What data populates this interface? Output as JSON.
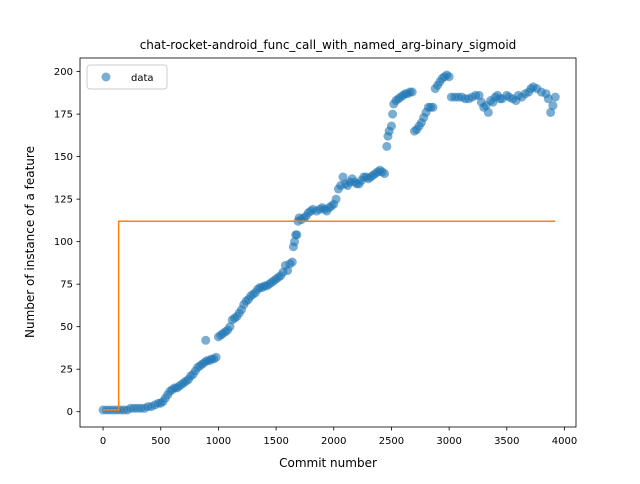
{
  "chart_data": {
    "type": "scatter",
    "title": "chat-rocket-android_func_call_with_named_arg-binary_sigmoid",
    "xlabel": "Commit number",
    "ylabel": "Number of instance of a feature",
    "xlim": [
      -200,
      4100
    ],
    "ylim": [
      -9,
      208
    ],
    "xticks": [
      0,
      500,
      1000,
      1500,
      2000,
      2500,
      3000,
      3500,
      4000
    ],
    "yticks": [
      0,
      25,
      50,
      75,
      100,
      125,
      150,
      175,
      200
    ],
    "grid": false,
    "legend": {
      "placement": "top-left",
      "entries": [
        "data"
      ]
    },
    "series": [
      {
        "name": "data",
        "kind": "scatter",
        "color": "#1f77b4",
        "points": [
          [
            0,
            1
          ],
          [
            30,
            1
          ],
          [
            60,
            1
          ],
          [
            90,
            1
          ],
          [
            120,
            1
          ],
          [
            150,
            1
          ],
          [
            180,
            1
          ],
          [
            210,
            1
          ],
          [
            240,
            2
          ],
          [
            270,
            2
          ],
          [
            300,
            2
          ],
          [
            330,
            2
          ],
          [
            360,
            2
          ],
          [
            390,
            3
          ],
          [
            420,
            3
          ],
          [
            450,
            4
          ],
          [
            480,
            5
          ],
          [
            500,
            5
          ],
          [
            520,
            6
          ],
          [
            540,
            8
          ],
          [
            560,
            10
          ],
          [
            580,
            12
          ],
          [
            600,
            13
          ],
          [
            620,
            14
          ],
          [
            640,
            14
          ],
          [
            660,
            15
          ],
          [
            680,
            16
          ],
          [
            700,
            17
          ],
          [
            720,
            18
          ],
          [
            740,
            19
          ],
          [
            760,
            21
          ],
          [
            780,
            22
          ],
          [
            800,
            24
          ],
          [
            820,
            26
          ],
          [
            840,
            27
          ],
          [
            860,
            28
          ],
          [
            880,
            29
          ],
          [
            890,
            42
          ],
          [
            900,
            30
          ],
          [
            920,
            30
          ],
          [
            940,
            31
          ],
          [
            960,
            31
          ],
          [
            980,
            32
          ],
          [
            1000,
            44
          ],
          [
            1020,
            45
          ],
          [
            1040,
            46
          ],
          [
            1060,
            47
          ],
          [
            1080,
            48
          ],
          [
            1100,
            50
          ],
          [
            1120,
            54
          ],
          [
            1140,
            55
          ],
          [
            1160,
            56
          ],
          [
            1180,
            58
          ],
          [
            1200,
            60
          ],
          [
            1220,
            63
          ],
          [
            1240,
            65
          ],
          [
            1260,
            66
          ],
          [
            1280,
            68
          ],
          [
            1300,
            69
          ],
          [
            1320,
            70
          ],
          [
            1340,
            72
          ],
          [
            1360,
            73
          ],
          [
            1380,
            73
          ],
          [
            1400,
            74
          ],
          [
            1420,
            74
          ],
          [
            1440,
            75
          ],
          [
            1460,
            76
          ],
          [
            1480,
            77
          ],
          [
            1500,
            78
          ],
          [
            1520,
            79
          ],
          [
            1540,
            80
          ],
          [
            1560,
            82
          ],
          [
            1580,
            86
          ],
          [
            1600,
            83
          ],
          [
            1620,
            87
          ],
          [
            1640,
            88
          ],
          [
            1650,
            97
          ],
          [
            1660,
            100
          ],
          [
            1670,
            104
          ],
          [
            1680,
            104
          ],
          [
            1690,
            112
          ],
          [
            1700,
            114
          ],
          [
            1720,
            113
          ],
          [
            1740,
            114
          ],
          [
            1760,
            115
          ],
          [
            1780,
            117
          ],
          [
            1800,
            118
          ],
          [
            1820,
            119
          ],
          [
            1850,
            118
          ],
          [
            1880,
            119
          ],
          [
            1900,
            120
          ],
          [
            1920,
            119
          ],
          [
            1940,
            118
          ],
          [
            1960,
            120
          ],
          [
            1980,
            121
          ],
          [
            2000,
            122
          ],
          [
            2020,
            125
          ],
          [
            2040,
            131
          ],
          [
            2060,
            133
          ],
          [
            2080,
            138
          ],
          [
            2100,
            134
          ],
          [
            2120,
            133
          ],
          [
            2140,
            135
          ],
          [
            2160,
            137
          ],
          [
            2180,
            135
          ],
          [
            2200,
            134
          ],
          [
            2220,
            134
          ],
          [
            2240,
            136
          ],
          [
            2260,
            138
          ],
          [
            2280,
            138
          ],
          [
            2300,
            137
          ],
          [
            2320,
            138
          ],
          [
            2340,
            139
          ],
          [
            2360,
            140
          ],
          [
            2380,
            141
          ],
          [
            2400,
            142
          ],
          [
            2420,
            141
          ],
          [
            2440,
            140
          ],
          [
            2460,
            156
          ],
          [
            2470,
            162
          ],
          [
            2480,
            165
          ],
          [
            2500,
            168
          ],
          [
            2510,
            175
          ],
          [
            2520,
            181
          ],
          [
            2540,
            183
          ],
          [
            2560,
            184
          ],
          [
            2580,
            185
          ],
          [
            2600,
            186
          ],
          [
            2620,
            187
          ],
          [
            2640,
            187
          ],
          [
            2660,
            188
          ],
          [
            2680,
            188
          ],
          [
            2700,
            165
          ],
          [
            2720,
            166
          ],
          [
            2740,
            168
          ],
          [
            2760,
            170
          ],
          [
            2780,
            173
          ],
          [
            2800,
            176
          ],
          [
            2820,
            179
          ],
          [
            2840,
            179
          ],
          [
            2860,
            179
          ],
          [
            2880,
            190
          ],
          [
            2900,
            192
          ],
          [
            2920,
            194
          ],
          [
            2940,
            196
          ],
          [
            2960,
            197
          ],
          [
            2980,
            198
          ],
          [
            3000,
            197
          ],
          [
            3020,
            185
          ],
          [
            3050,
            185
          ],
          [
            3080,
            185
          ],
          [
            3110,
            185
          ],
          [
            3140,
            184
          ],
          [
            3170,
            184
          ],
          [
            3200,
            185
          ],
          [
            3230,
            186
          ],
          [
            3260,
            186
          ],
          [
            3280,
            182
          ],
          [
            3300,
            179
          ],
          [
            3320,
            180
          ],
          [
            3340,
            176
          ],
          [
            3360,
            183
          ],
          [
            3380,
            182
          ],
          [
            3400,
            185
          ],
          [
            3420,
            186
          ],
          [
            3440,
            184
          ],
          [
            3460,
            184
          ],
          [
            3500,
            186
          ],
          [
            3520,
            185
          ],
          [
            3550,
            184
          ],
          [
            3580,
            183
          ],
          [
            3600,
            186
          ],
          [
            3630,
            185
          ],
          [
            3660,
            187
          ],
          [
            3690,
            188
          ],
          [
            3710,
            190
          ],
          [
            3730,
            191
          ],
          [
            3760,
            190
          ],
          [
            3800,
            188
          ],
          [
            3840,
            187
          ],
          [
            3860,
            184
          ],
          [
            3880,
            176
          ],
          [
            3900,
            180
          ],
          [
            3920,
            185
          ]
        ]
      },
      {
        "name": "",
        "kind": "line",
        "color": "#ff7f0e",
        "points": [
          [
            0,
            1
          ],
          [
            135,
            1
          ],
          [
            135,
            112
          ],
          [
            3920,
            112
          ]
        ]
      }
    ]
  }
}
